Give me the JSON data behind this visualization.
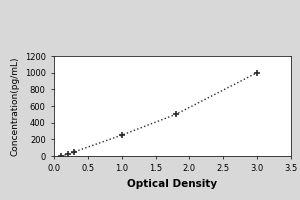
{
  "x_data": [
    0.1,
    0.2,
    0.3,
    1.0,
    1.8,
    3.0
  ],
  "y_data": [
    0,
    20,
    50,
    250,
    500,
    1000
  ],
  "xlabel": "Optical Density",
  "ylabel": "Concentration(pg/mL)",
  "xlim": [
    0,
    3.5
  ],
  "ylim": [
    0,
    1200
  ],
  "xticks": [
    0,
    0.5,
    1.0,
    1.5,
    2.0,
    2.5,
    3.0,
    3.5
  ],
  "yticks": [
    0,
    200,
    400,
    600,
    800,
    1000,
    1200
  ],
  "line_color": "#2a2a2a",
  "marker": "+",
  "marker_size": 5,
  "line_style": "dotted",
  "background_color": "#d8d8d8",
  "plot_bg_color": "#ffffff",
  "xlabel_fontsize": 7.5,
  "ylabel_fontsize": 6.5,
  "tick_fontsize": 6,
  "linewidth": 1.0,
  "markeredgewidth": 1.2
}
